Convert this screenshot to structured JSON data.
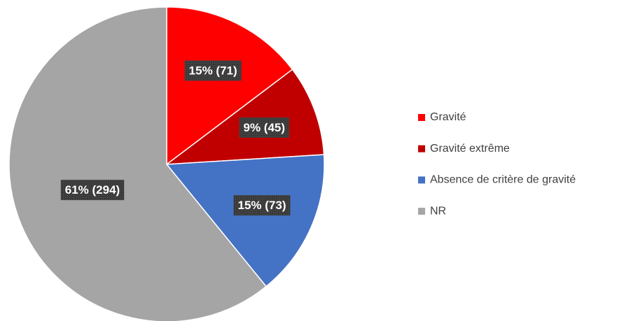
{
  "chart_data": {
    "type": "pie",
    "categories": [
      "Gravité",
      "Gravité extrême",
      "Absence de critère de gravité",
      "NR"
    ],
    "values": [
      71,
      45,
      73,
      294
    ],
    "value_labels": [
      "15% (71)",
      "9% (45)",
      "15% (73)",
      "61% (294)"
    ],
    "colors": [
      "#ff0000",
      "#c00000",
      "#4472c4",
      "#a5a5a5"
    ],
    "legend": "right"
  }
}
